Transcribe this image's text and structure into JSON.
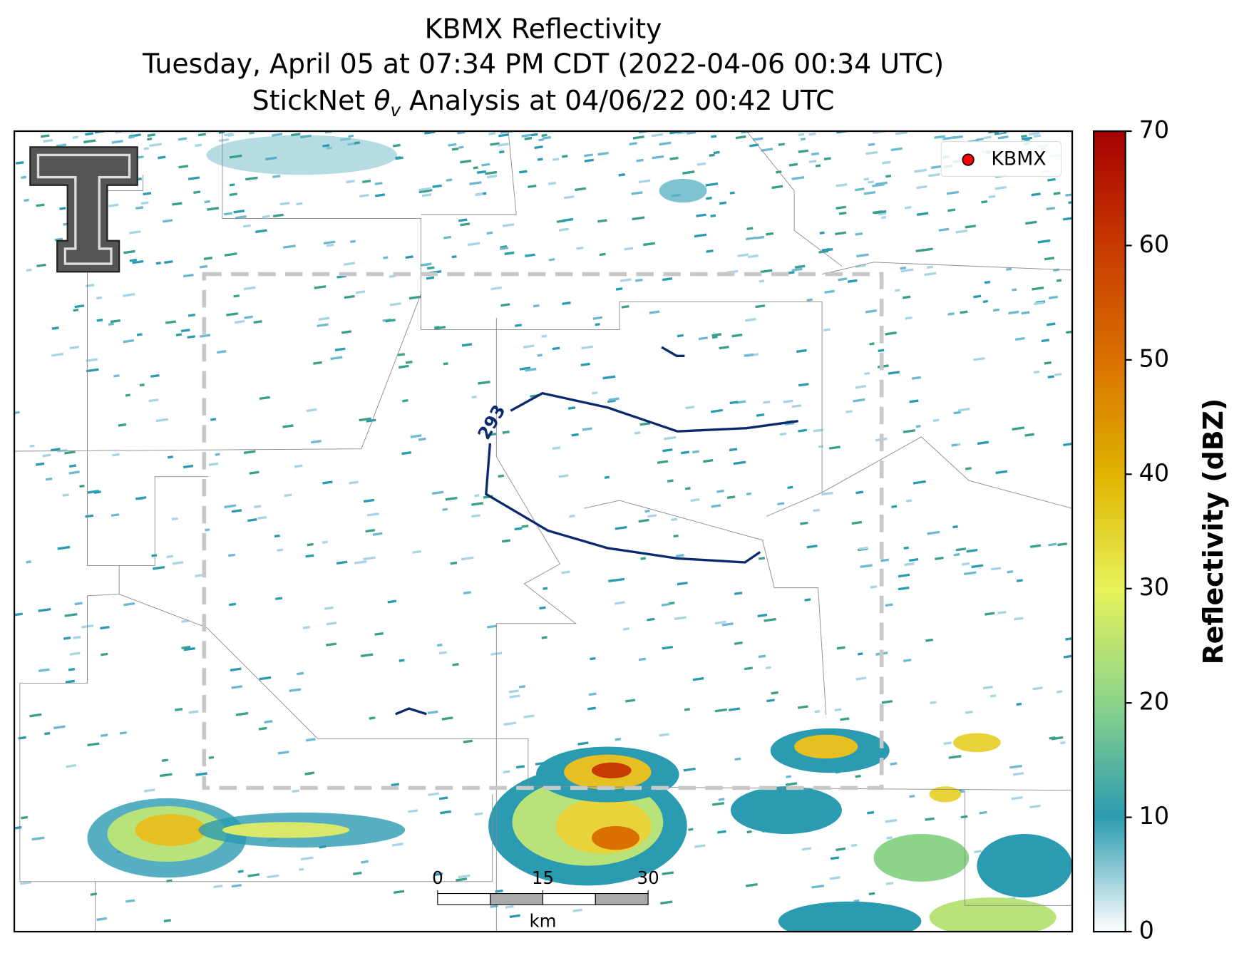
{
  "title": {
    "line1": "KBMX Reflectivity",
    "line2": "Tuesday, April 05 at 07:34 PM CDT (2022-04-06 00:34 UTC)",
    "line3": {
      "prefix": "StickNet ",
      "symbol": "θ",
      "subscript": "v",
      "rest": " Analysis at 04/06/22 00:42 UTC"
    }
  },
  "legend": {
    "label": "KBMX",
    "color": "#ff0000"
  },
  "contour_label": "293",
  "colorbar": {
    "label": "Reflectivity (dBZ)",
    "lim": [
      0,
      70
    ],
    "ticks": [
      0,
      10,
      20,
      30,
      40,
      50,
      60,
      70
    ],
    "colormap": [
      {
        "value": 0,
        "color": "#ffffff"
      },
      {
        "value": 10,
        "color": "#2a9bb0"
      },
      {
        "value": 20,
        "color": "#8bd48a"
      },
      {
        "value": 30,
        "color": "#e8f25a"
      },
      {
        "value": 40,
        "color": "#e0b400"
      },
      {
        "value": 50,
        "color": "#d97000"
      },
      {
        "value": 60,
        "color": "#c73a00"
      },
      {
        "value": 70,
        "color": "#a50000"
      }
    ]
  },
  "scalebar": {
    "lim": [
      0,
      30
    ],
    "ticks": [
      0,
      15,
      30
    ],
    "unit": "km",
    "segment": 7.5
  }
}
